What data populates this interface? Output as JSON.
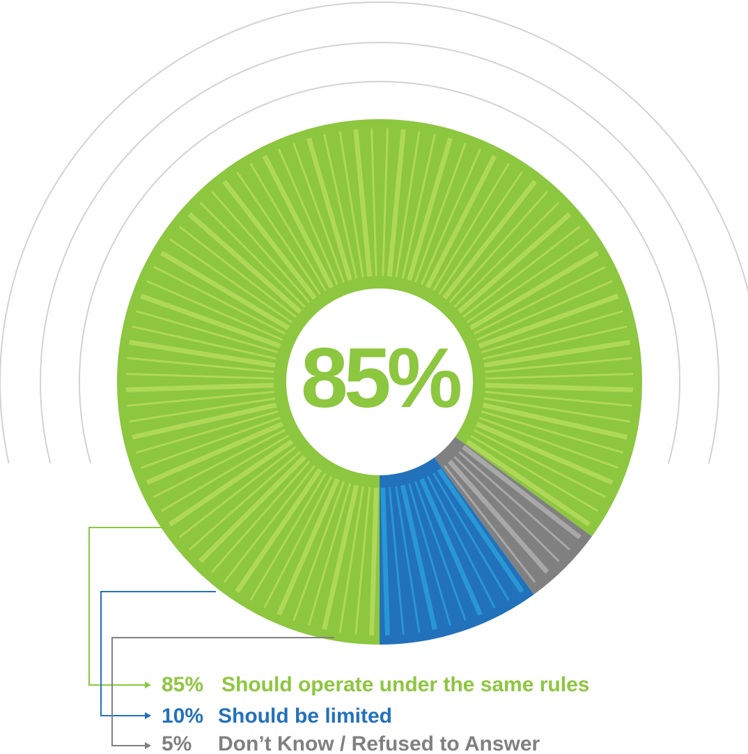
{
  "chart_data": {
    "type": "pie",
    "subtype": "donut",
    "center_label": "85%",
    "slices": [
      {
        "name": "Should operate under the same rules",
        "value": 85,
        "value_label": "85%",
        "color": "#8dc63f",
        "ray_color": "#b2d95a"
      },
      {
        "name": "Don't Know / Refused to Answer",
        "value": 5,
        "value_label": "5%",
        "color": "#808080",
        "ray_color": "#ababab"
      },
      {
        "name": "Should be limited",
        "value": 10,
        "value_label": "10%",
        "color": "#2271bb",
        "ray_color": "#2a9ad6"
      }
    ],
    "legend": [
      {
        "value_label": "85%",
        "label": "Should operate under the same rules",
        "color": "#8dc63f"
      },
      {
        "value_label": "10%",
        "label": "Should be limited",
        "color": "#2271bb"
      },
      {
        "value_label": "5%",
        "label": "Don’t Know / Refused to Answer",
        "color": "#808080"
      }
    ],
    "legend_placement": "bottom"
  }
}
